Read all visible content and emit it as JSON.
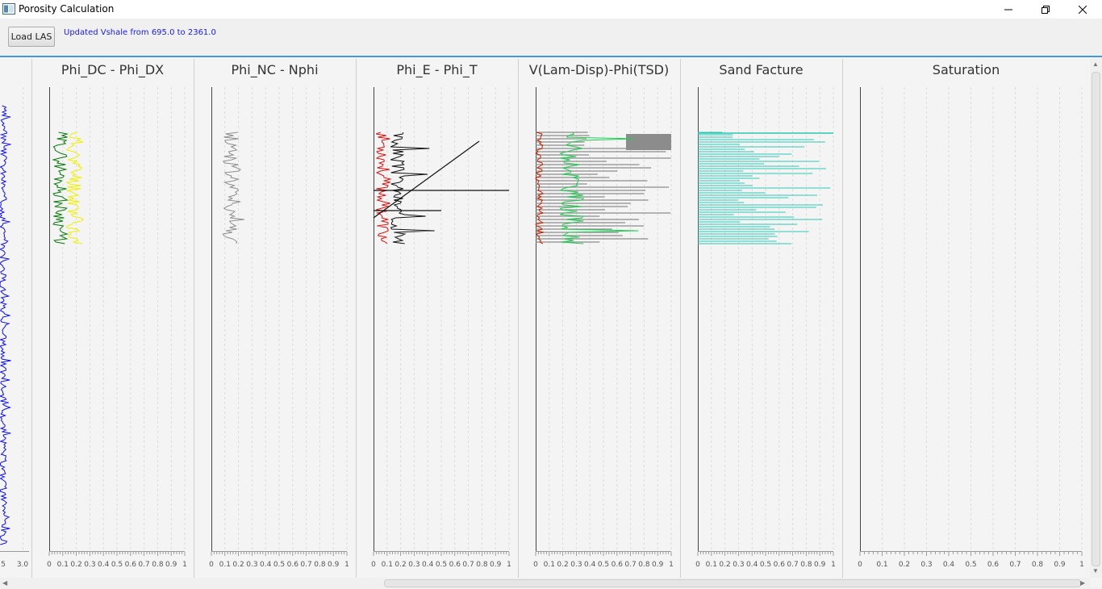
{
  "window": {
    "title": "Porosity Calculation",
    "icon": "app-window-icon",
    "controls": [
      "minimize-icon",
      "restore-icon",
      "close-icon"
    ]
  },
  "toolbar": {
    "load_label": "Load LAS",
    "status": "Updated Vshale from 695.0 to 2361.0"
  },
  "colors": {
    "accent": "#3c9bd6",
    "status_text": "#1a1ae6",
    "phi_dc": "#0a7a0a",
    "phi_dx": "#f0f000",
    "nphi": "#8f8f8f",
    "phi_e": "#e01010",
    "phi_t": "#111111",
    "v_lam": "#cc2200",
    "v_disp": "#22cc55",
    "phi_tsd": "#8c8c8c",
    "sand_facture": "#2ec7b4",
    "vshale": "#1010dd"
  },
  "vshale_axis": {
    "ticks": [
      "5",
      "3.0"
    ]
  },
  "panels": [
    {
      "title": "Phi_DC - Phi_DX",
      "ticks": [
        "0",
        "0.1",
        "0.2",
        "0.3",
        "0.4",
        "0.5",
        "0.6",
        "0.7",
        "0.8",
        "0.9",
        "1"
      ]
    },
    {
      "title": "Phi_NC - Nphi",
      "ticks": [
        "0",
        "0.1",
        "0.2",
        "0.3",
        "0.4",
        "0.5",
        "0.6",
        "0.7",
        "0.8",
        "0.9",
        "1"
      ]
    },
    {
      "title": "Phi_E - Phi_T",
      "ticks": [
        "0",
        "0.1",
        "0.2",
        "0.3",
        "0.4",
        "0.5",
        "0.6",
        "0.7",
        "0.8",
        "0.9",
        "1"
      ]
    },
    {
      "title": "V(Lam-Disp)-Phi(TSD)",
      "ticks": [
        "0",
        "0.1",
        "0.2",
        "0.3",
        "0.4",
        "0.5",
        "0.6",
        "0.7",
        "0.8",
        "0.9",
        "1"
      ]
    },
    {
      "title": "Sand Facture",
      "ticks": [
        "0",
        "0.1",
        "0.2",
        "0.3",
        "0.4",
        "0.5",
        "0.6",
        "0.7",
        "0.8",
        "0.9",
        "1"
      ]
    },
    {
      "title": "Saturation",
      "ticks": [
        "0",
        "0.1",
        "0.2",
        "0.3",
        "0.4",
        "0.5",
        "0.6",
        "0.7",
        "0.8",
        "0.9",
        "1"
      ]
    }
  ]
}
